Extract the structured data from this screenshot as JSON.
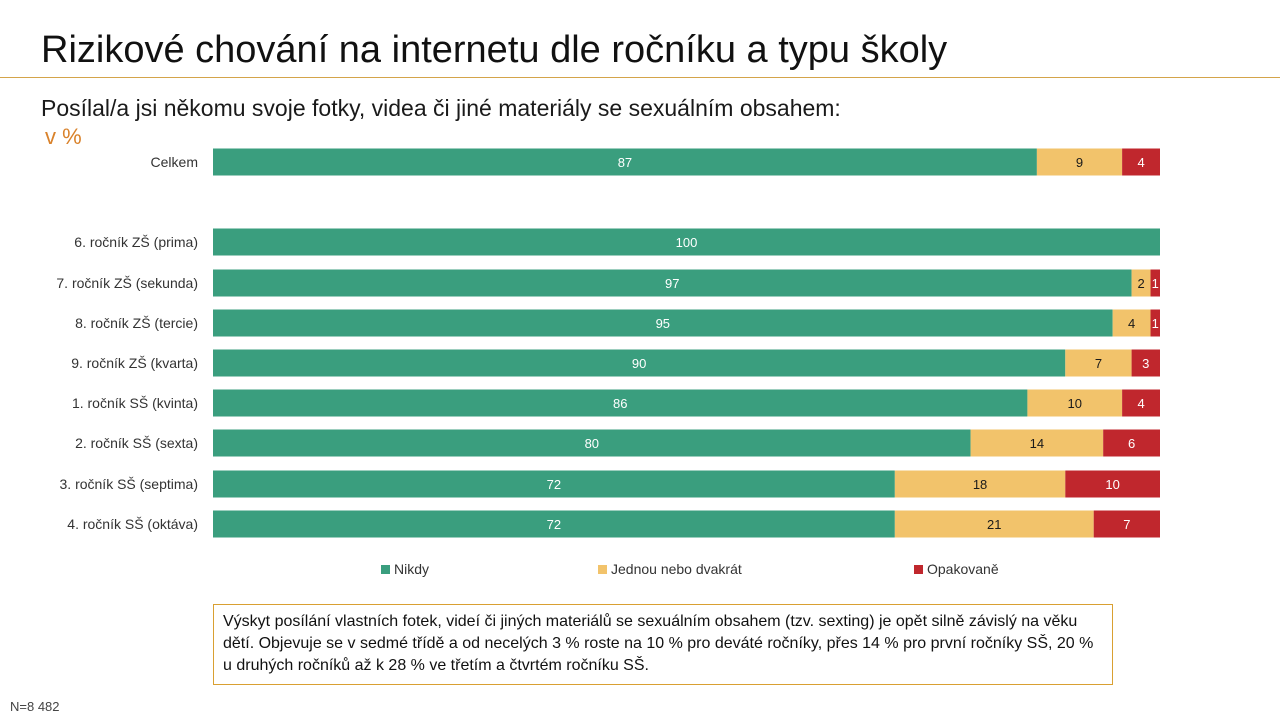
{
  "page": {
    "title": "Rizikové chování na internetu dle ročníku a typu školy",
    "question": "Posílal/a jsi někomu svoje fotky, videa či jiné materiály se sexuálním obsahem:",
    "unit": "v %",
    "note": "Výskyt posílání vlastních fotek, videí či jiných materiálů se sexuálním obsahem (tzv. sexting) je opět silně závislý na věku dětí. Objevuje se v sedmé třídě a od necelých 3 % roste na 10 % pro deváté ročníky, přes 14 % pro první ročníky SŠ, 20 % u druhých ročníků až k 28 % ve třetím a čtvrtém ročníku SŠ.",
    "sample_size": "N=8 482"
  },
  "colors": {
    "nikdy": "#3a9e7e",
    "jednou": "#f2c36b",
    "opakovane": "#c0272d",
    "accent": "#d9822b"
  },
  "chart_data": {
    "type": "bar",
    "orientation": "horizontal",
    "stacked": true,
    "xlim": [
      0,
      100
    ],
    "grid": false,
    "legend_placement": "bottom",
    "categories": [
      "Celkem",
      "6. ročník ZŠ (prima)",
      "7. ročník ZŠ (sekunda)",
      "8. ročník ZŠ (tercie)",
      "9. ročník ZŠ (kvarta)",
      "1. ročník SŠ (kvinta)",
      "2. ročník SŠ (sexta)",
      "3. ročník SŠ (septima)",
      "4. ročník SŠ (oktáva)"
    ],
    "series": [
      {
        "name": "Nikdy",
        "color": "#3a9e7e",
        "values": [
          87,
          100,
          97,
          95,
          90,
          86,
          80,
          72,
          72
        ]
      },
      {
        "name": "Jednou nebo dvakrát",
        "color": "#f2c36b",
        "values": [
          9,
          0,
          2,
          4,
          7,
          10,
          14,
          18,
          21
        ]
      },
      {
        "name": "Opakovaně",
        "color": "#c0272d",
        "values": [
          4,
          0,
          1,
          1,
          3,
          4,
          6,
          10,
          7
        ]
      }
    ]
  }
}
